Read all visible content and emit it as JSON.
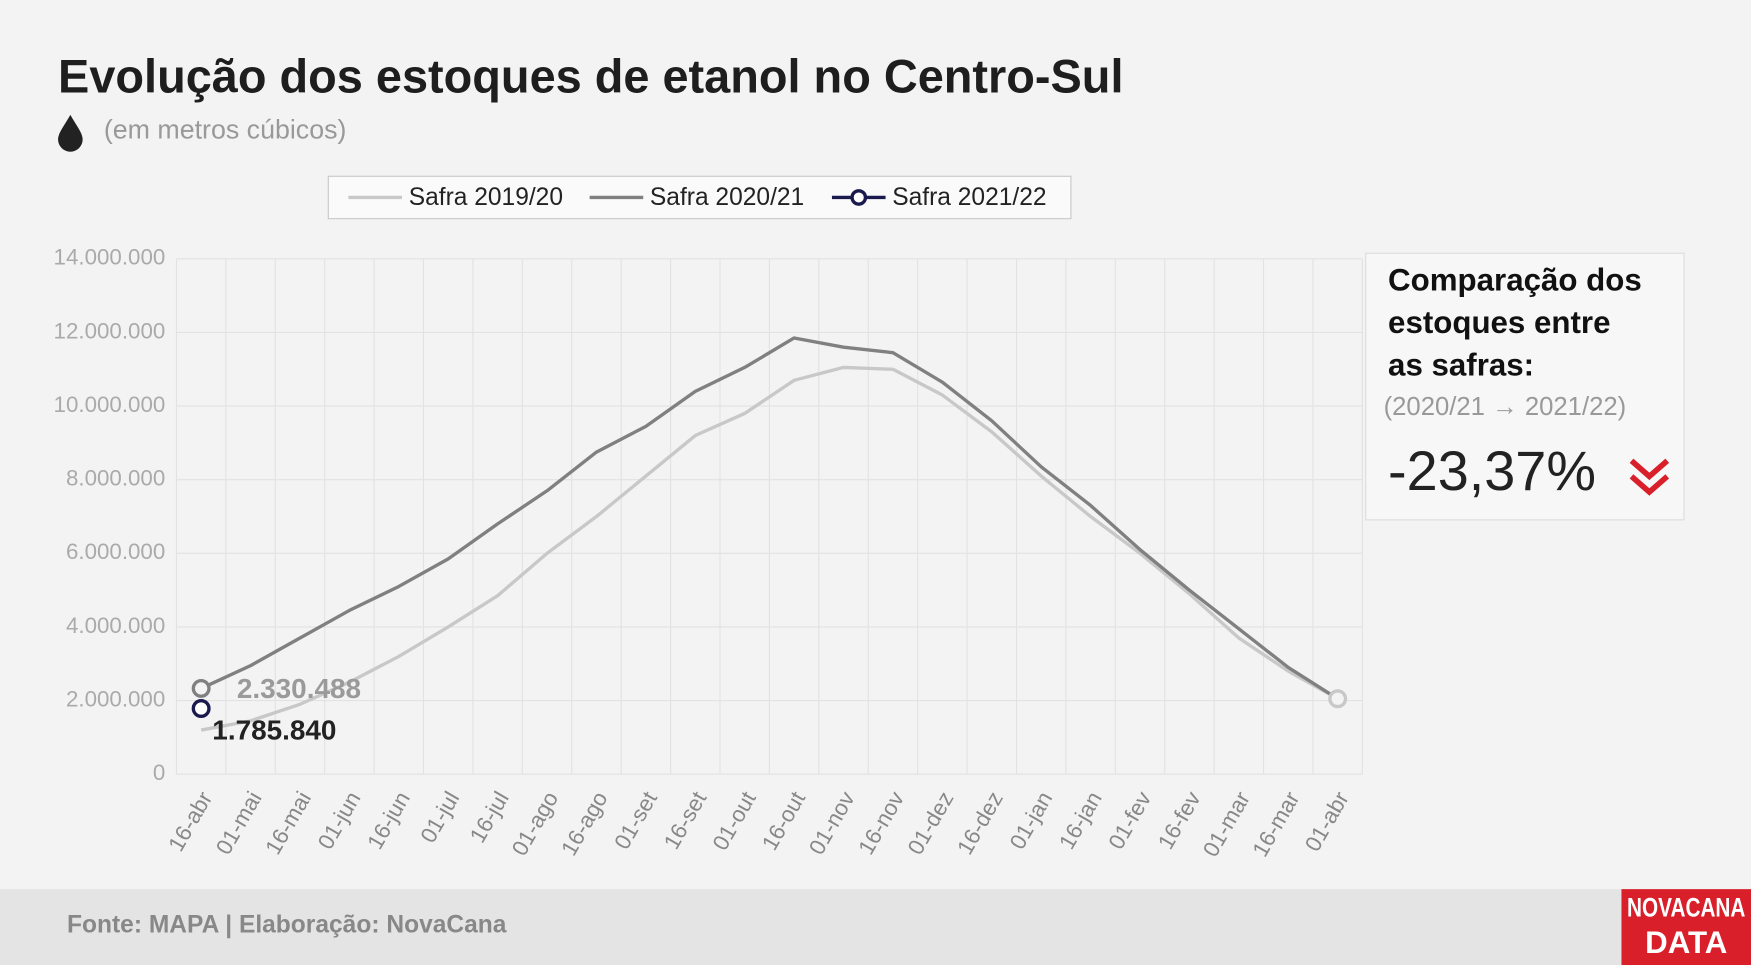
{
  "chart_data": {
    "type": "line",
    "title": "Evolução dos estoques de etanol no Centro-Sul",
    "subtitle": "(em metros cúbicos)",
    "categories": [
      "16-abr",
      "01-mai",
      "16-mai",
      "01-jun",
      "16-jun",
      "01-jul",
      "16-jul",
      "01-ago",
      "16-ago",
      "01-set",
      "16-set",
      "01-out",
      "16-out",
      "01-nov",
      "16-nov",
      "01-dez",
      "16-dez",
      "01-jan",
      "16-jan",
      "01-fev",
      "16-fev",
      "01-mar",
      "16-mar",
      "01-abr"
    ],
    "series": [
      {
        "name": "Safra 2019/20",
        "color": "#c8c8c8",
        "values": [
          1200000,
          1450000,
          1900000,
          2500000,
          3200000,
          4000000,
          4850000,
          6000000,
          7000000,
          8100000,
          9200000,
          9800000,
          10700000,
          11050000,
          11000000,
          10300000,
          9300000,
          8100000,
          7000000,
          6000000,
          4900000,
          3700000,
          2800000,
          2050000
        ]
      },
      {
        "name": "Safra 2020/21",
        "color": "#808080",
        "values": [
          2330488,
          2950000,
          3700000,
          4450000,
          5100000,
          5850000,
          6800000,
          7700000,
          8750000,
          9450000,
          10400000,
          11050000,
          11850000,
          11600000,
          11450000,
          10650000,
          9600000,
          8350000,
          7300000,
          6100000,
          5000000,
          3950000,
          2900000,
          2050000
        ],
        "value_labels": [
          "2.330.488",
          null,
          null,
          null,
          null,
          null,
          null,
          null,
          null,
          null,
          null,
          null,
          null,
          null,
          null,
          null,
          null,
          null,
          null,
          null,
          null,
          null,
          null,
          null
        ]
      },
      {
        "name": "Safra 2021/22",
        "color": "#1a1a4e",
        "values": [
          1785840,
          null,
          null,
          null,
          null,
          null,
          null,
          null,
          null,
          null,
          null,
          null,
          null,
          null,
          null,
          null,
          null,
          null,
          null,
          null,
          null,
          null,
          null,
          null
        ],
        "value_labels": [
          "1.785.840",
          null,
          null,
          null,
          null,
          null,
          null,
          null,
          null,
          null,
          null,
          null,
          null,
          null,
          null,
          null,
          null,
          null,
          null,
          null,
          null,
          null,
          null,
          null
        ]
      }
    ],
    "ylim": [
      0,
      14000000
    ],
    "yticks": [
      0,
      {
        "value": 2000000,
        "label": "2.000.000"
      },
      {
        "value": 4000000,
        "label": "4.000.000"
      },
      {
        "value": 6000000,
        "label": "6.000.000"
      },
      {
        "value": 8000000,
        "label": "8.000.000"
      },
      {
        "value": 10000000,
        "label": "10.000.000"
      },
      {
        "value": 12000000,
        "label": "12.000.000"
      },
      {
        "value": 14000000,
        "label": "14.000.000"
      }
    ],
    "grid": true,
    "legend": "top"
  },
  "comparison": {
    "title": [
      "Comparação dos",
      "estoques entre",
      "as safras:"
    ],
    "period": "(2020/21 → 2021/22)",
    "value": "-23,37%"
  },
  "footer": {
    "source": "Fonte: MAPA  | Elaboração: NovaCana"
  },
  "logo": {
    "line1": "NOVACANA",
    "line2": "DATA"
  }
}
